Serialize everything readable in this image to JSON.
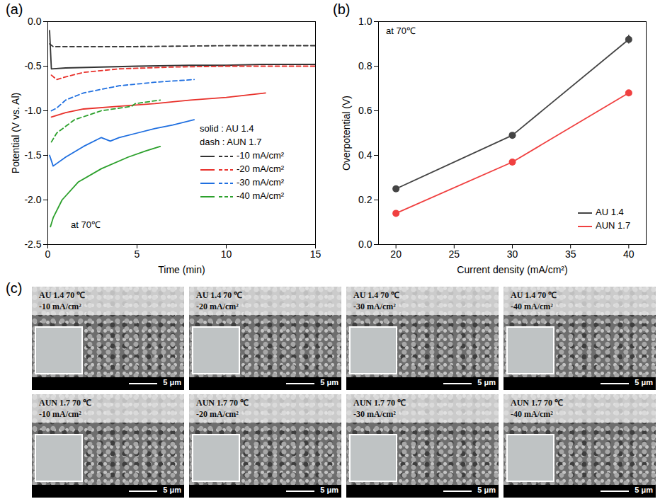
{
  "chart_data": [
    {
      "type": "line",
      "panel_label": "(a)",
      "x_label": "Time (min)",
      "y_label": "Potential (V vs. Al)",
      "annotations": [
        "at 70℃"
      ],
      "legend_notes": [
        "solid : AU 1.4",
        "dash : AUN 1.7"
      ],
      "legend": "lower right",
      "xlim": [
        0,
        15
      ],
      "xticks": [
        0,
        5,
        10,
        15
      ],
      "ylim": [
        -2.5,
        0
      ],
      "yticks": [
        {
          "value": 0,
          "label": "0.0"
        },
        {
          "value": -0.5,
          "label": "-0.5"
        },
        {
          "value": -1,
          "label": "-1.0"
        },
        {
          "value": -1.5,
          "label": "-1.5"
        },
        {
          "value": -2,
          "label": "-2.0"
        },
        {
          "value": -2.5,
          "label": "-2.5"
        }
      ],
      "series": [
        {
          "name": "-10 mA/cm²",
          "color": "#333333",
          "line_style": "solid",
          "x": [
            0.1,
            0.2,
            1,
            3,
            5,
            8,
            10,
            12,
            15
          ],
          "values": [
            -0.1,
            -0.53,
            -0.52,
            -0.51,
            -0.5,
            -0.49,
            -0.49,
            -0.48,
            -0.48
          ]
        },
        {
          "name": "-10 mA/cm²",
          "color": "#333333",
          "line_style": "dashed",
          "x": [
            0.1,
            0.3,
            5,
            10,
            15
          ],
          "values": [
            -0.25,
            -0.28,
            -0.28,
            -0.27,
            -0.27
          ]
        },
        {
          "name": "-20 mA/cm²",
          "color": "#e8312b",
          "line_style": "solid",
          "x": [
            0.2,
            1,
            2,
            4,
            6,
            8,
            10,
            12.2
          ],
          "values": [
            -1.07,
            -1.02,
            -0.98,
            -0.95,
            -0.92,
            -0.88,
            -0.85,
            -0.8
          ]
        },
        {
          "name": "-20 mA/cm²",
          "color": "#e8312b",
          "line_style": "dashed",
          "x": [
            0.2,
            0.5,
            1,
            2,
            4,
            7,
            10,
            15
          ],
          "values": [
            -0.6,
            -0.65,
            -0.62,
            -0.57,
            -0.53,
            -0.51,
            -0.5,
            -0.5
          ]
        },
        {
          "name": "-30 mA/cm²",
          "color": "#1f6fe0",
          "line_style": "solid",
          "x": [
            0.1,
            0.3,
            1,
            2,
            3,
            3.5,
            4,
            5,
            6,
            7,
            8.2
          ],
          "values": [
            -1.5,
            -1.62,
            -1.52,
            -1.4,
            -1.3,
            -1.34,
            -1.3,
            -1.25,
            -1.2,
            -1.16,
            -1.1
          ]
        },
        {
          "name": "-30 mA/cm²",
          "color": "#1f6fe0",
          "line_style": "dashed",
          "x": [
            0.2,
            0.5,
            1,
            2,
            4,
            6,
            8.2
          ],
          "values": [
            -1.0,
            -0.97,
            -0.88,
            -0.8,
            -0.72,
            -0.68,
            -0.65
          ]
        },
        {
          "name": "-40 mA/cm²",
          "color": "#2ca02c",
          "line_style": "solid",
          "x": [
            0.15,
            0.3,
            0.8,
            1.7,
            3,
            4.5,
            5.5,
            6.3
          ],
          "values": [
            -2.3,
            -2.2,
            -2.0,
            -1.8,
            -1.65,
            -1.52,
            -1.45,
            -1.4
          ]
        },
        {
          "name": "-40 mA/cm²",
          "color": "#2ca02c",
          "line_style": "dashed",
          "x": [
            0.2,
            0.5,
            1.5,
            3,
            4.7,
            4.9,
            6.3
          ],
          "values": [
            -1.35,
            -1.25,
            -1.1,
            -1.0,
            -0.95,
            -0.92,
            -0.88
          ]
        }
      ]
    },
    {
      "type": "line",
      "panel_label": "(b)",
      "x_label": "Current density (mA/cm²)",
      "y_label": "Overpotential (V)",
      "annotations": [
        "at 70℃"
      ],
      "legend": "lower right",
      "xlim": [
        18.5,
        41.5
      ],
      "xticks": [
        20,
        25,
        30,
        35,
        40
      ],
      "ylim": [
        0,
        1
      ],
      "yticks": [
        {
          "value": 0,
          "label": "0.0"
        },
        {
          "value": 0.2,
          "label": "0.2"
        },
        {
          "value": 0.4,
          "label": "0.4"
        },
        {
          "value": 0.6,
          "label": "0.6"
        },
        {
          "value": 0.8,
          "label": "0.8"
        },
        {
          "value": 1,
          "label": "1.0"
        }
      ],
      "series": [
        {
          "name": "AU 1.4",
          "color": "#444444",
          "marker": "circle",
          "line_style": "solid",
          "x": [
            20,
            30,
            40
          ],
          "values": [
            0.25,
            0.49,
            0.92
          ],
          "errors": [
            0.005,
            0.005,
            0.02
          ]
        },
        {
          "name": "AUN 1.7",
          "color": "#f04040",
          "marker": "circle",
          "line_style": "solid",
          "x": [
            20,
            30,
            40
          ],
          "values": [
            0.14,
            0.37,
            0.68
          ],
          "errors": [
            0.005,
            0.005,
            0.005
          ]
        }
      ]
    }
  ],
  "images": {
    "panel_label": "(c)",
    "panels": [
      {
        "label": [
          "AU 1.4 70 ℃",
          "-10 mA/cm²"
        ],
        "scale_bar": "5 μm"
      },
      {
        "label": [
          "AU 1.4 70 ℃",
          "-20 mA/cm²"
        ],
        "scale_bar": "5 μm"
      },
      {
        "label": [
          "AU 1.4 70 ℃",
          "-30 mA/cm²"
        ],
        "scale_bar": "5 μm"
      },
      {
        "label": [
          "AU 1.4 70 ℃",
          "-40 mA/cm²"
        ],
        "scale_bar": "5 μm"
      },
      {
        "label": [
          "AUN 1.7 70 ℃",
          "-10 mA/cm²"
        ],
        "scale_bar": "5 μm"
      },
      {
        "label": [
          "AUN 1.7 70 ℃",
          "-20 mA/cm²"
        ],
        "scale_bar": "5 μm"
      },
      {
        "label": [
          "AUN 1.7 70 ℃",
          "-30 mA/cm²"
        ],
        "scale_bar": "5 μm"
      },
      {
        "label": [
          "AUN 1.7 70 ℃",
          "-40 mA/cm²"
        ],
        "scale_bar": "5 μm"
      }
    ]
  }
}
